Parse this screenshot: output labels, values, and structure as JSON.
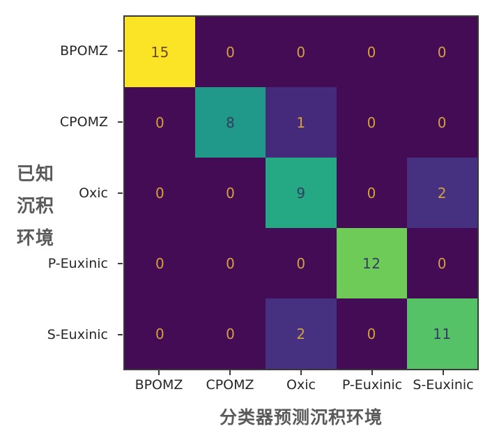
{
  "figure": {
    "background": "#ffffff",
    "spine_color": "#3a3a3a",
    "tick_label_color": "#262626",
    "axis_title_color": "#5a5a5a",
    "x_axis_title": "分类器预测沉积环境",
    "y_axis_title_lines": [
      "已知",
      "沉积",
      "环境"
    ]
  },
  "chart_data": {
    "type": "heatmap",
    "title": "",
    "xlabel": "分类器预测沉积环境",
    "ylabel": "已知沉积环境",
    "categories_x": [
      "BPOMZ",
      "CPOMZ",
      "Oxic",
      "P-Euxinic",
      "S-Euxinic"
    ],
    "categories_y": [
      "BPOMZ",
      "CPOMZ",
      "Oxic",
      "P-Euxinic",
      "S-Euxinic"
    ],
    "matrix": [
      [
        15,
        0,
        0,
        0,
        0
      ],
      [
        0,
        8,
        1,
        0,
        0
      ],
      [
        0,
        0,
        9,
        0,
        2
      ],
      [
        0,
        0,
        0,
        12,
        0
      ],
      [
        0,
        0,
        2,
        0,
        11
      ]
    ],
    "colormap": "viridis",
    "value_range": [
      0,
      15
    ],
    "grid": false,
    "legend": "none",
    "cell_colors": {
      "0": "#440c54",
      "1": "#45297b",
      "2": "#463180",
      "8": "#21998a",
      "9": "#25a884",
      "11": "#56c267",
      "12": "#6ecb58",
      "15": "#fbe426"
    },
    "cell_text_colors": {
      "0": "#d2a13e",
      "1": "#d2a13e",
      "2": "#d2a13e",
      "8": "#333d5f",
      "9": "#333d5f",
      "11": "#333d5f",
      "12": "#333d5f",
      "15": "#6b4a26"
    }
  }
}
